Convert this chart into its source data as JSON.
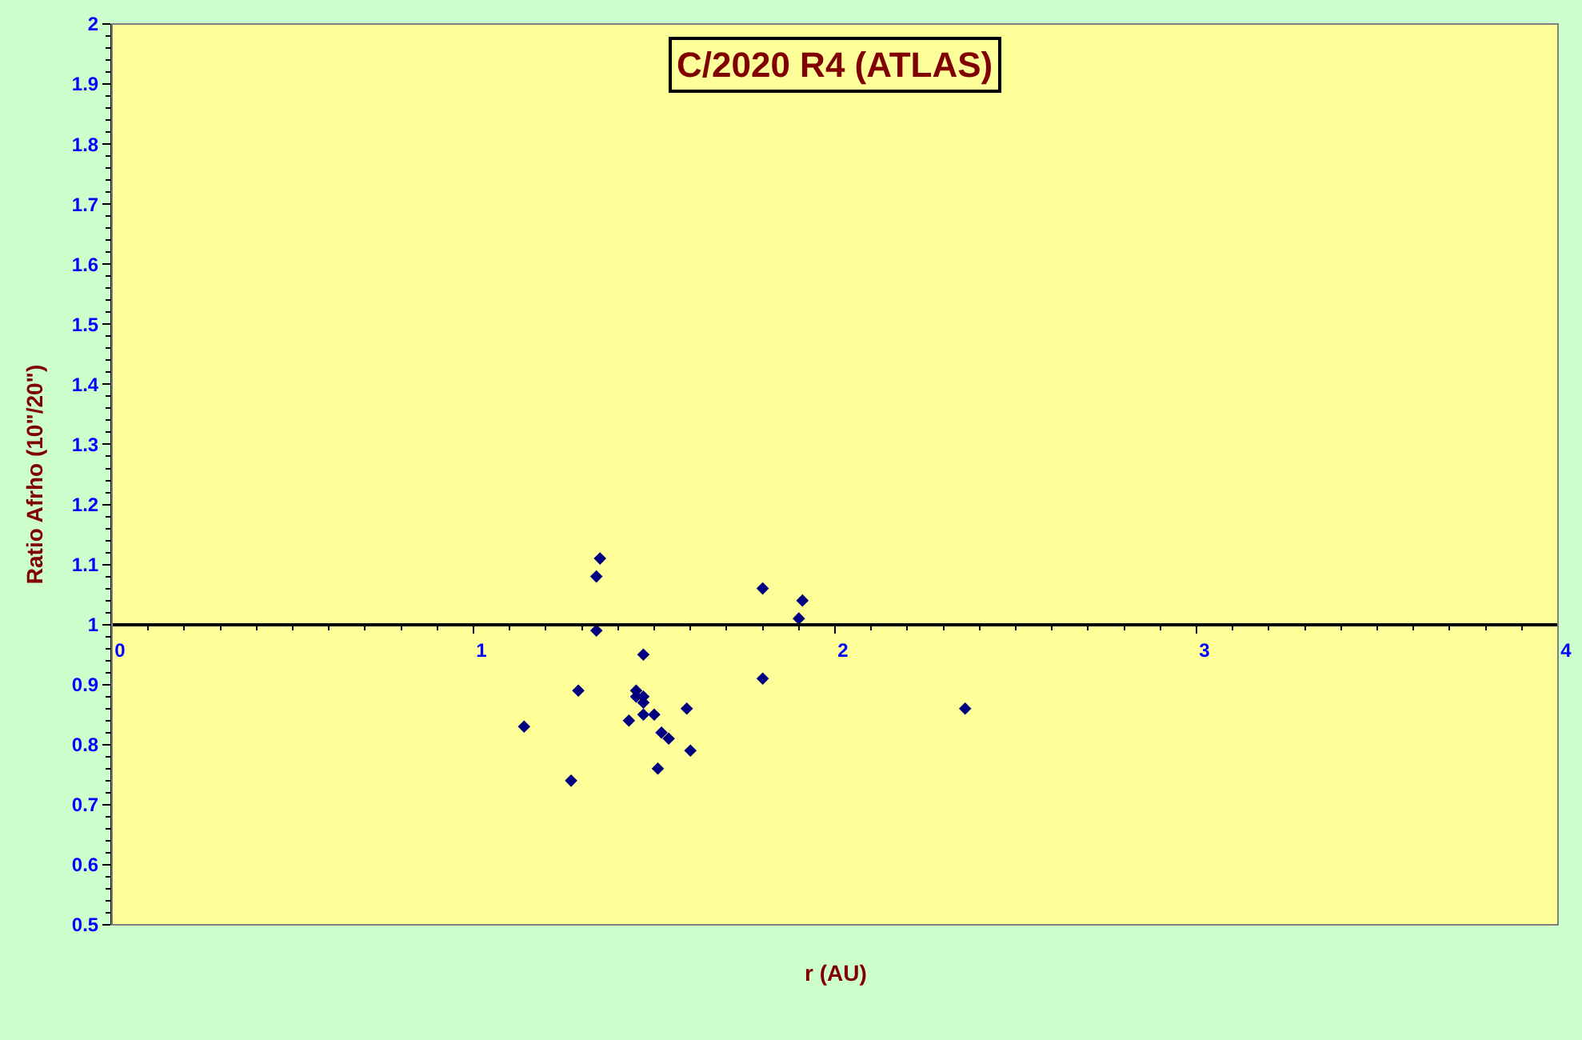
{
  "chart_data": {
    "type": "scatter",
    "title": "C/2020 R4 (ATLAS)",
    "xlabel": "r (AU)",
    "ylabel": "Ratio Afrho (10\"/20\")",
    "x": [
      1.35,
      1.34,
      1.34,
      1.8,
      1.91,
      1.9,
      1.47,
      1.8,
      1.29,
      1.45,
      1.47,
      1.45,
      1.47,
      1.5,
      1.59,
      2.36,
      1.14,
      1.47,
      1.43,
      1.52,
      1.54,
      1.6,
      1.51,
      1.27
    ],
    "values": [
      1.11,
      1.08,
      0.99,
      1.06,
      1.04,
      1.01,
      0.95,
      0.91,
      0.89,
      0.89,
      0.88,
      0.88,
      0.87,
      0.85,
      0.86,
      0.86,
      0.83,
      0.85,
      0.84,
      0.82,
      0.81,
      0.79,
      0.76,
      0.74
    ],
    "color": "#000080",
    "marker": "diamond",
    "xlim": [
      0,
      4
    ],
    "xticks": [
      0,
      1,
      2,
      3,
      4
    ],
    "ylim": [
      0.5,
      2
    ],
    "yticks": [
      0.5,
      0.6,
      0.7,
      0.8,
      0.9,
      1,
      1.1,
      1.2,
      1.3,
      1.4,
      1.5,
      1.6,
      1.7,
      1.8,
      1.9,
      2
    ],
    "grid": false
  }
}
